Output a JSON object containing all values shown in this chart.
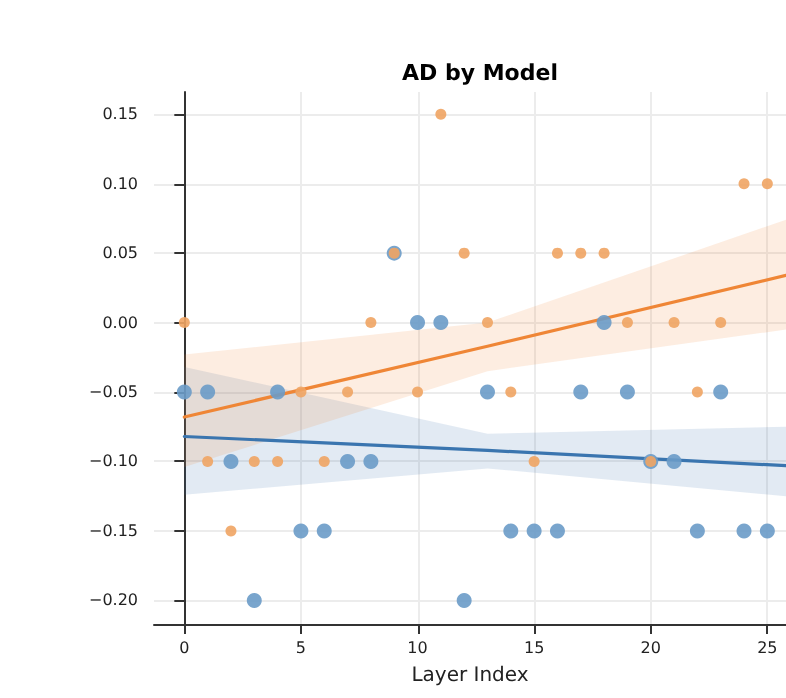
{
  "chart_data": {
    "type": "scatter",
    "title": "AD by Model",
    "xlabel": "Layer Index",
    "x": [
      0,
      1,
      2,
      3,
      4,
      5,
      6,
      7,
      8,
      9,
      10,
      11,
      12,
      13,
      14,
      15,
      16,
      17,
      18,
      19,
      20,
      21,
      22,
      23,
      24,
      25
    ],
    "series": [
      {
        "color": "#6a9bc8",
        "marker": "circle",
        "values": [
          -0.05,
          -0.05,
          -0.1,
          -0.2,
          -0.05,
          -0.15,
          -0.15,
          -0.1,
          -0.1,
          0.05,
          0,
          0,
          -0.2,
          -0.05,
          -0.15,
          -0.15,
          -0.15,
          -0.05,
          0,
          -0.05,
          -0.1,
          -0.1,
          -0.15,
          -0.05,
          -0.15,
          -0.15
        ]
      },
      {
        "color": "#f0a463",
        "marker": "circle",
        "values": [
          0,
          -0.1,
          -0.15,
          -0.1,
          -0.1,
          -0.05,
          -0.1,
          -0.05,
          0,
          0.05,
          -0.05,
          0.15,
          0.05,
          0,
          -0.05,
          -0.1,
          0.05,
          0.05,
          0.05,
          0,
          -0.1,
          0,
          -0.05,
          0,
          0.1,
          0.1
        ]
      },
      {
        "type": "line",
        "color": "#3a75af",
        "marker": "none",
        "x": [
          0,
          13,
          25.8
        ],
        "values": [
          -0.082,
          -0.092,
          -0.103
        ],
        "lower": [
          -0.124,
          -0.105,
          -0.125
        ],
        "upper": [
          -0.032,
          -0.08,
          -0.075
        ]
      },
      {
        "type": "line",
        "color": "#ef8636",
        "marker": "none",
        "x": [
          0,
          13,
          25.8
        ],
        "values": [
          -0.068,
          -0.017,
          0.034
        ],
        "lower": [
          -0.104,
          -0.035,
          -0.005
        ],
        "upper": [
          -0.023,
          0,
          0.074
        ]
      }
    ],
    "xlim": [
      -1.3,
      25.8
    ],
    "ylim": [
      -0.217,
      0.166
    ],
    "xticks": [
      0,
      5,
      10,
      15,
      20,
      25
    ],
    "yticks": [
      {
        "value": -0.2,
        "label": "−0.20"
      },
      {
        "value": -0.15,
        "label": "−0.15"
      },
      {
        "value": -0.1,
        "label": "−0.10"
      },
      {
        "value": -0.05,
        "label": "−0.05"
      },
      {
        "value": 0,
        "label": "0.00"
      },
      {
        "value": 0.05,
        "label": "0.05"
      },
      {
        "value": 0.1,
        "label": "0.10"
      },
      {
        "value": 0.15,
        "label": "0.15"
      }
    ],
    "grid": true,
    "line_style": "solid"
  }
}
